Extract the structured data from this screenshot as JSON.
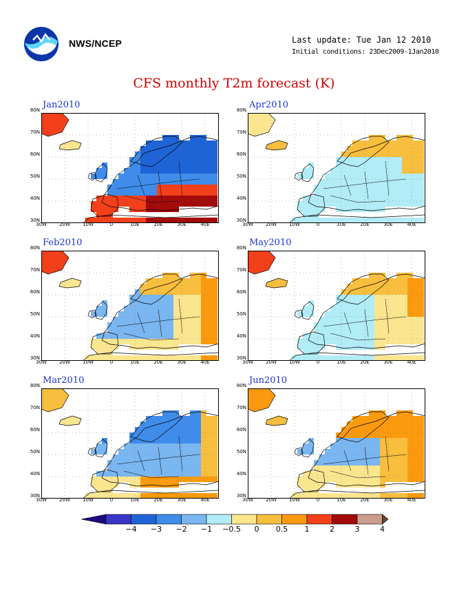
{
  "header": {
    "agency": "NWS/NCEP",
    "last_update": "Last update: Tue Jan 12 2010",
    "initial_conditions": "Initial conditions: 23Dec2009-1Jan2010",
    "title": "CFS monthly T2m forecast (K)"
  },
  "logo": {
    "icon": "noaa-logo-icon"
  },
  "axes": {
    "lat_labels": [
      "80N",
      "70N",
      "60N",
      "50N",
      "40N",
      "30N"
    ],
    "lon_labels": [
      "30W",
      "20W",
      "10W",
      "0",
      "10E",
      "20E",
      "30E",
      "40E"
    ]
  },
  "panels": [
    {
      "title": "Jan2010",
      "regime": "cold"
    },
    {
      "title": "Apr2010",
      "regime": "mild-warm"
    },
    {
      "title": "Feb2010",
      "regime": "mixed-cool"
    },
    {
      "title": "May2010",
      "regime": "warm"
    },
    {
      "title": "Mar2010",
      "regime": "cool"
    },
    {
      "title": "Jun2010",
      "regime": "warm"
    }
  ],
  "colorbar": {
    "labels": [
      "-4",
      "-3",
      "-2",
      "-1",
      "-0.5",
      "0",
      "0.5",
      "1",
      "2",
      "3",
      "4"
    ],
    "colors": {
      "lt_-4": "#1b0a80",
      "-4_-3": "#3a34c8",
      "-3_-2": "#1f64d6",
      "-2_-1": "#3f8cea",
      "-1_-0.5": "#7ab6f0",
      "-0.5_0": "#b2ecf6",
      "0_0.5": "#fbe690",
      "0.5_1": "#f8be3e",
      "1_2": "#fb9a0e",
      "2_3": "#f2401a",
      "3_4": "#a30a0a",
      "4_5": "#cc9d8c",
      "gt_4": "#6a4432"
    }
  }
}
